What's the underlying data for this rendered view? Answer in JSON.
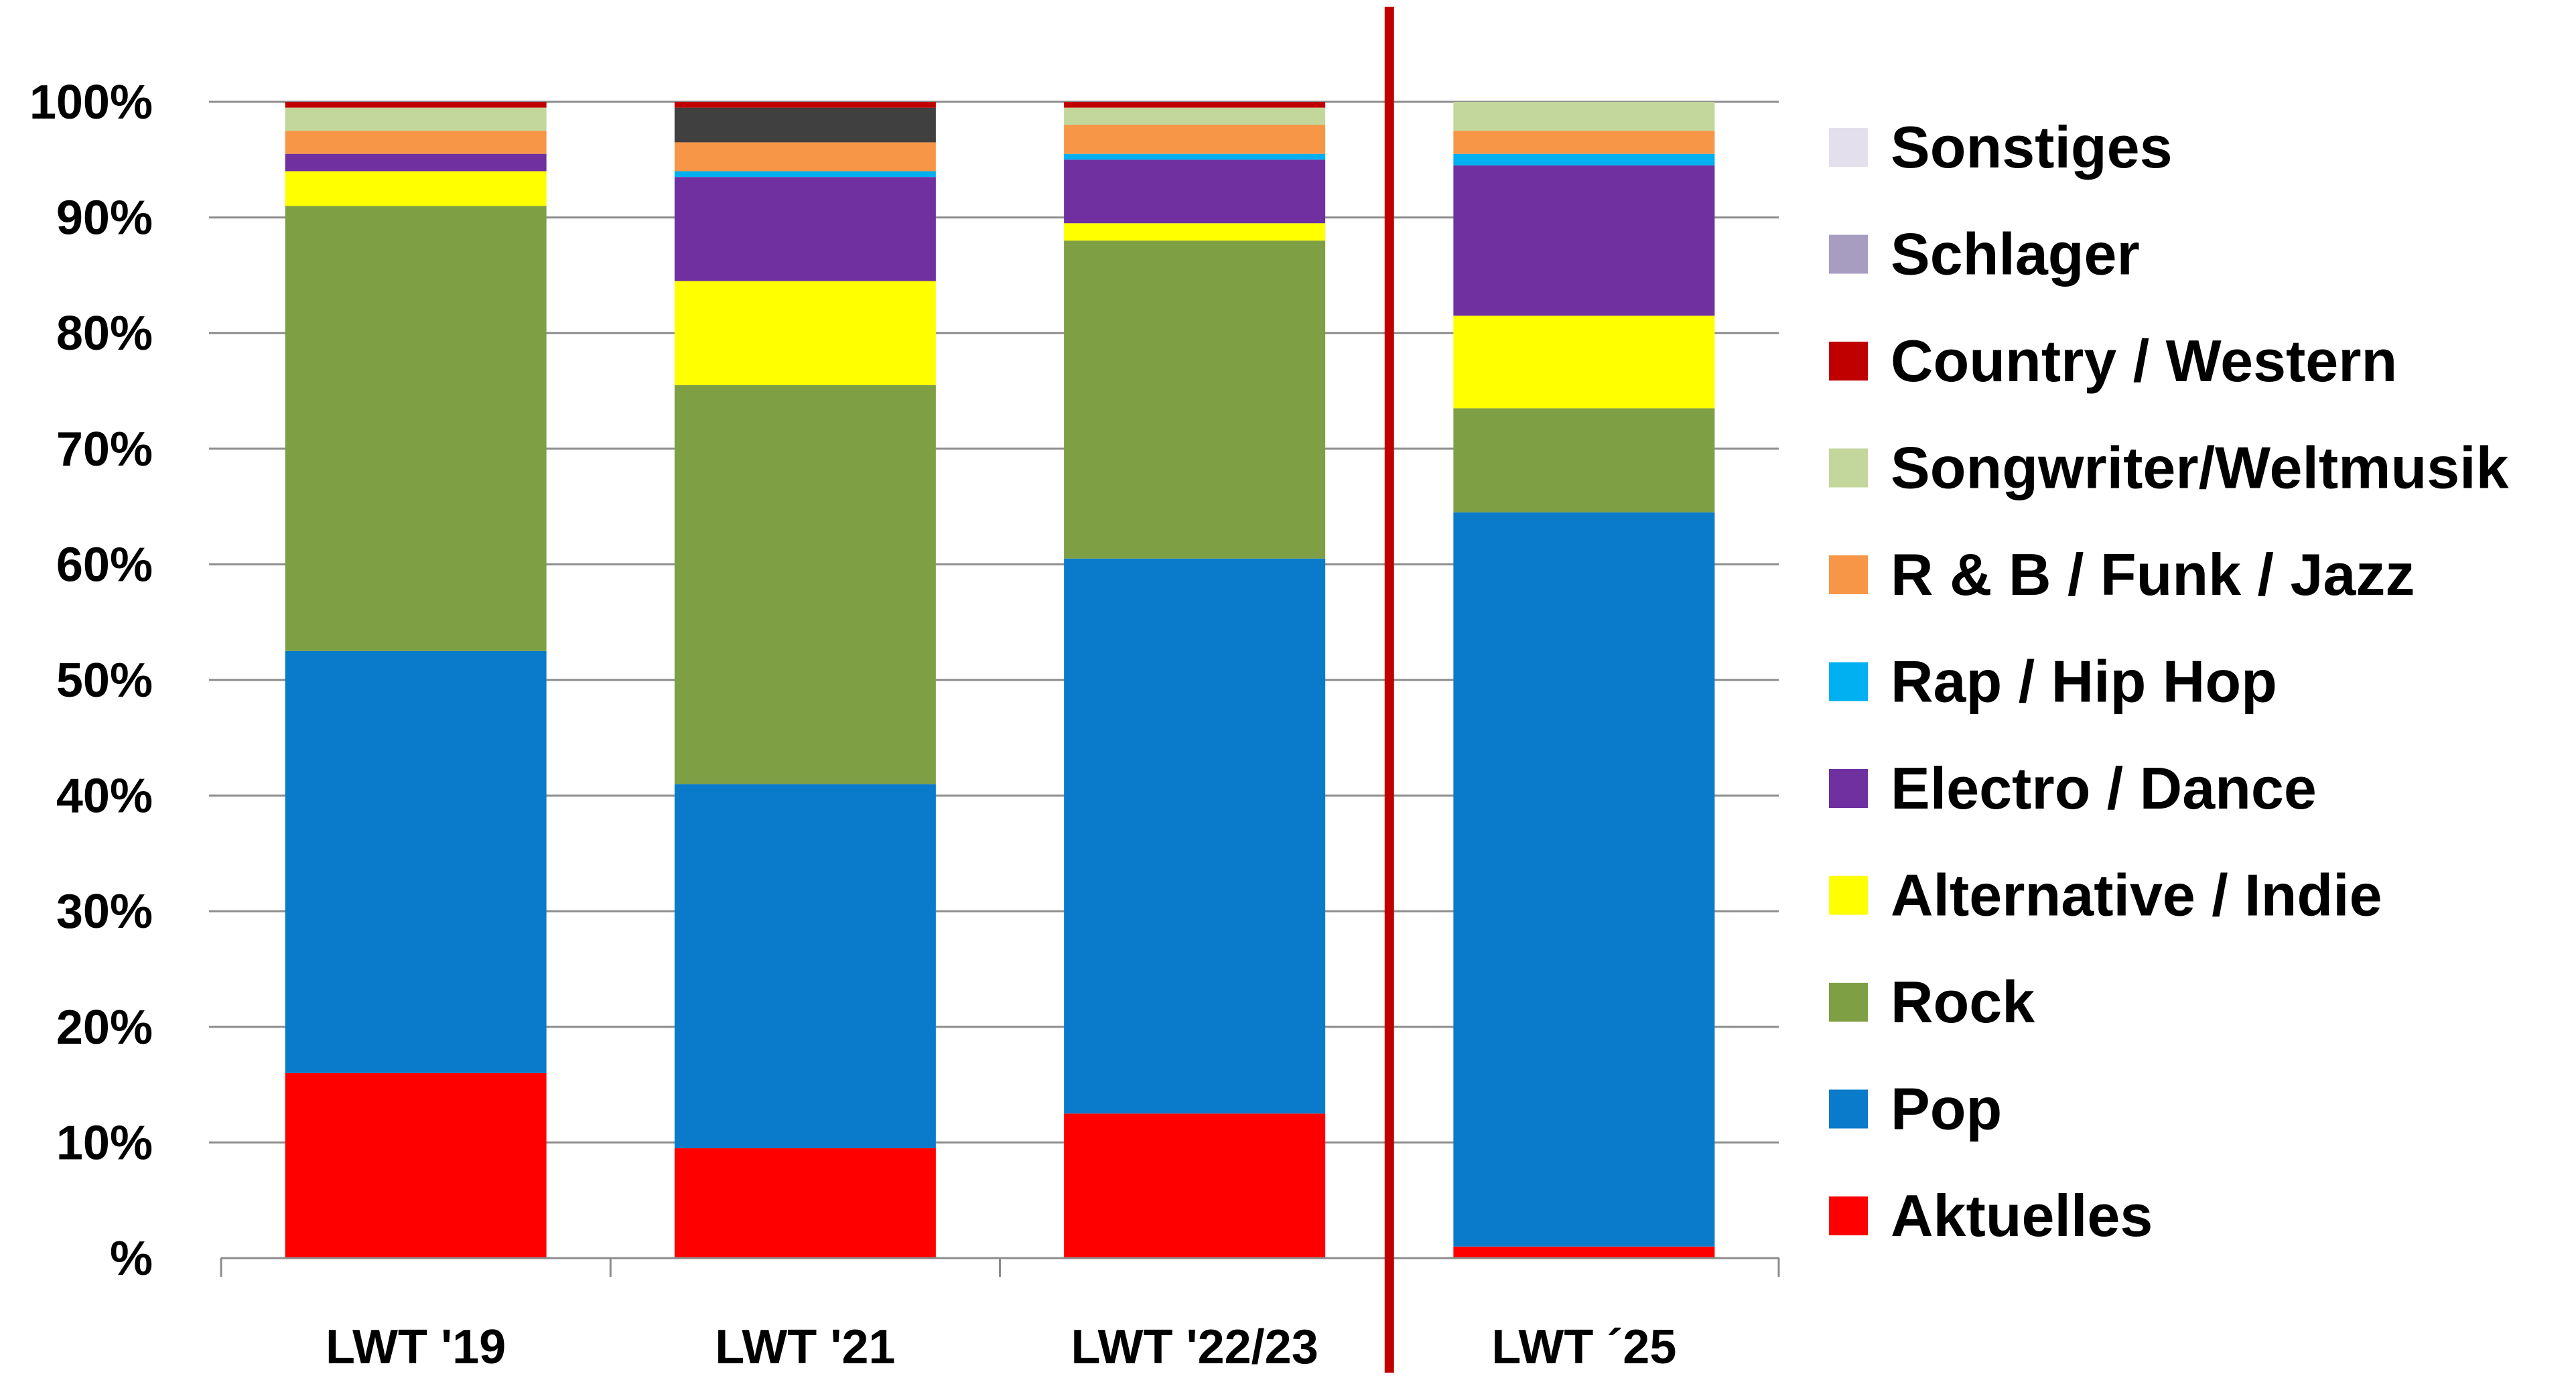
{
  "chart_data": {
    "type": "bar",
    "stacked": true,
    "percent_stacked": true,
    "categories": [
      "LWT '19",
      "LWT '21",
      "LWT '22/23",
      "LWT ´25"
    ],
    "y_ticks": [
      "%",
      "10%",
      "20%",
      "30%",
      "40%",
      "50%",
      "60%",
      "70%",
      "80%",
      "90%",
      "100%"
    ],
    "ylim": [
      0,
      100
    ],
    "grid": true,
    "legend_position": "right",
    "divider_before_category": "LWT ´25",
    "divider_color": "#C00000",
    "series": [
      {
        "name": "Aktuelles",
        "color": "#FF0000",
        "values": [
          16,
          9.5,
          12.5,
          1
        ]
      },
      {
        "name": "Pop",
        "color": "#0A7BCB",
        "values": [
          36.5,
          31.5,
          48,
          63.5
        ]
      },
      {
        "name": "Rock",
        "color": "#7F9F45",
        "values": [
          38.5,
          34.5,
          27.5,
          9
        ]
      },
      {
        "name": "Alternative / Indie",
        "color": "#FFFF00",
        "values": [
          3,
          9,
          1.5,
          8
        ]
      },
      {
        "name": "Electro / Dance",
        "color": "#7030A0",
        "values": [
          1.5,
          9,
          5.5,
          13
        ]
      },
      {
        "name": "Rap / Hip Hop",
        "color": "#00B0F0",
        "values": [
          0,
          0.5,
          0.5,
          1
        ]
      },
      {
        "name": "R & B / Funk / Jazz",
        "color": "#F79646",
        "values": [
          2,
          2.5,
          2.5,
          2
        ]
      },
      {
        "name": "",
        "color": "#404040",
        "values": [
          0,
          3,
          0,
          0
        ]
      },
      {
        "name": "Songwriter/Weltmusik",
        "color": "#C3D69B",
        "values": [
          2,
          0,
          1.5,
          2.5
        ]
      },
      {
        "name": "Country / Western",
        "color": "#C00000",
        "values": [
          0.5,
          0.5,
          0.5,
          0
        ]
      },
      {
        "name": "Schlager",
        "color": "#A79DC1",
        "values": [
          0,
          0,
          0,
          0
        ]
      },
      {
        "name": "Sonstiges",
        "color": "#E4DFEC",
        "values": [
          0,
          0,
          0,
          0
        ]
      }
    ],
    "legend_order": [
      "Sonstiges",
      "Schlager",
      "Country / Western",
      "Songwriter/Weltmusik",
      "R & B / Funk / Jazz",
      "Rap / Hip Hop",
      "Electro / Dance",
      "Alternative / Indie",
      "Rock",
      "Pop",
      "Aktuelles"
    ]
  }
}
